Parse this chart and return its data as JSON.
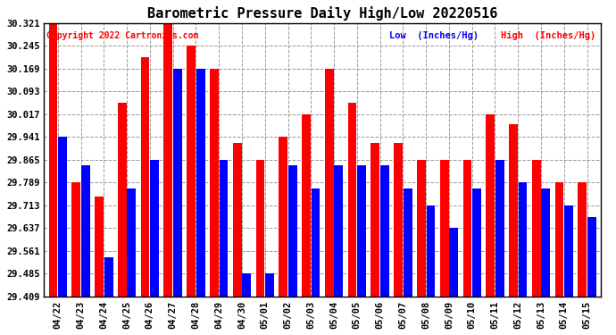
{
  "title": "Barometric Pressure Daily High/Low 20220516",
  "copyright": "Copyright 2022 Cartronics.com",
  "legend_low": "Low  (Inches/Hg)",
  "legend_high": "High  (Inches/Hg)",
  "color_low": "blue",
  "color_high": "red",
  "ylim_min": 29.409,
  "ylim_max": 30.321,
  "yticks": [
    29.409,
    29.485,
    29.561,
    29.637,
    29.713,
    29.789,
    29.865,
    29.941,
    30.017,
    30.093,
    30.169,
    30.245,
    30.321
  ],
  "dates": [
    "04/22",
    "04/23",
    "04/24",
    "04/25",
    "04/26",
    "04/27",
    "04/28",
    "04/29",
    "04/30",
    "05/01",
    "05/02",
    "05/03",
    "05/04",
    "05/05",
    "05/06",
    "05/07",
    "05/08",
    "05/09",
    "05/10",
    "05/11",
    "05/12",
    "05/13",
    "05/14",
    "05/15"
  ],
  "high": [
    30.321,
    29.789,
    29.741,
    30.055,
    30.207,
    30.321,
    30.245,
    30.169,
    29.921,
    29.865,
    29.941,
    30.017,
    30.169,
    30.055,
    29.921,
    29.921,
    29.865,
    29.865,
    29.865,
    30.017,
    29.983,
    29.865,
    29.789,
    29.789
  ],
  "low": [
    29.941,
    29.845,
    29.541,
    29.769,
    29.865,
    30.169,
    30.169,
    29.865,
    29.485,
    29.485,
    29.845,
    29.769,
    29.845,
    29.845,
    29.845,
    29.769,
    29.713,
    29.637,
    29.769,
    29.865,
    29.789,
    29.769,
    29.713,
    29.675
  ]
}
